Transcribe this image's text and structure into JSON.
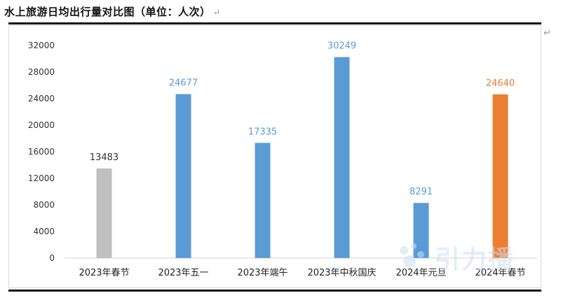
{
  "document": {
    "title": "水上旅游日均出行量对比图（单位：人次）",
    "return_mark": "↵"
  },
  "watermark": {
    "text": "引力播"
  },
  "chart_data": {
    "type": "bar",
    "title": "",
    "xlabel": "",
    "ylabel": "",
    "categories": [
      "2023年春节",
      "2023年五一",
      "2023年端午",
      "2023年中秋国庆",
      "2024年元旦",
      "2024年春节"
    ],
    "values": [
      13483,
      24677,
      17335,
      30249,
      8291,
      24640
    ],
    "bar_colors": [
      "#bfbfbf",
      "#5b9bd5",
      "#5b9bd5",
      "#5b9bd5",
      "#5b9bd5",
      "#ed7d31"
    ],
    "label_colors": [
      "#333333",
      "#5b9bd5",
      "#5b9bd5",
      "#5b9bd5",
      "#5b9bd5",
      "#ed7d31"
    ],
    "ylim": [
      0,
      32000
    ],
    "yticks": [
      0,
      4000,
      8000,
      12000,
      16000,
      20000,
      24000,
      28000,
      32000
    ],
    "grid": false,
    "data_labels": true
  }
}
